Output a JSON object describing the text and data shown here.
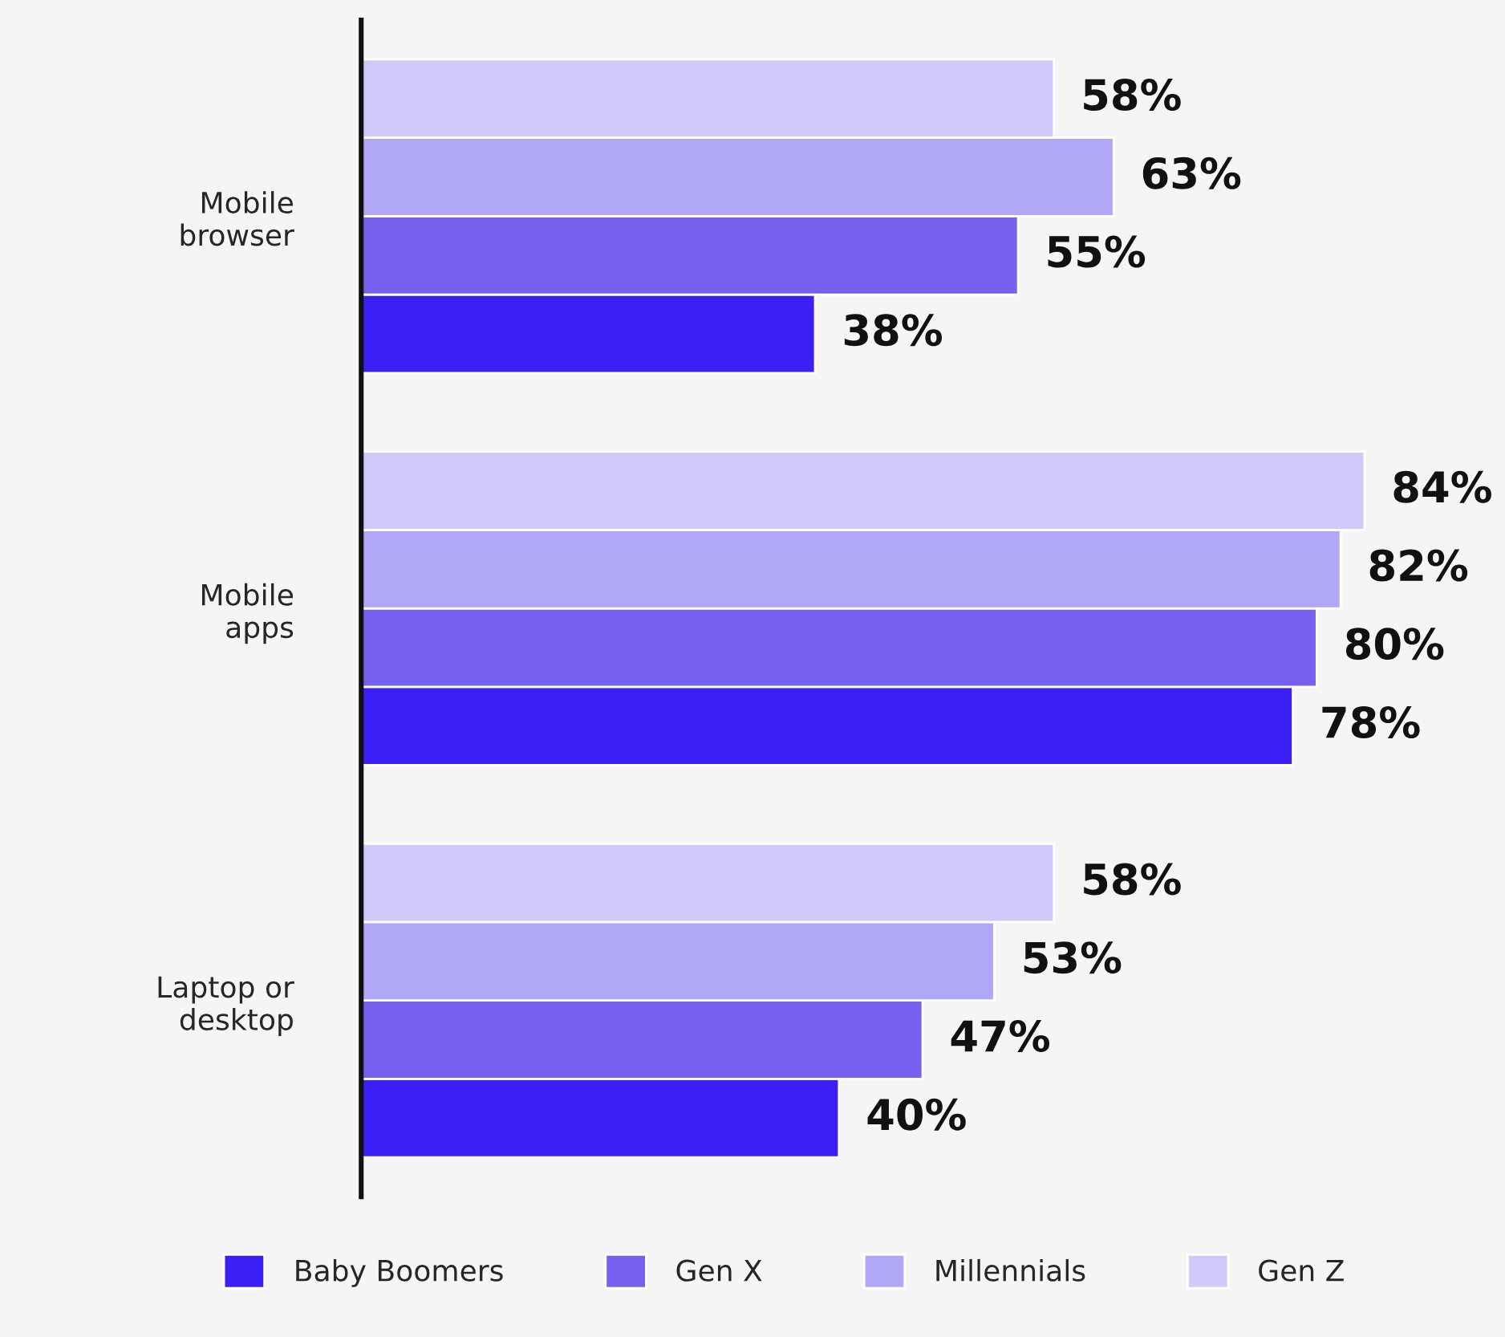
{
  "chart_data": {
    "type": "bar",
    "orientation": "horizontal",
    "categories": [
      "Mobile\nbrowser",
      "Mobile\napps",
      "Laptop or\ndesktop"
    ],
    "series": [
      {
        "name": "Baby Boomers",
        "color": "#3c1ff5",
        "values": [
          38,
          78,
          40
        ],
        "value_labels": [
          "38%",
          "78%",
          "40%"
        ]
      },
      {
        "name": "Gen X",
        "color": "#7661ef",
        "values": [
          55,
          80,
          47
        ],
        "value_labels": [
          "55%",
          "80%",
          "47%"
        ]
      },
      {
        "name": "Millennials",
        "color": "#b0a7f6",
        "values": [
          63,
          82,
          53
        ],
        "value_labels": [
          "63%",
          "82%",
          "53%"
        ]
      },
      {
        "name": "Gen Z",
        "color": "#cfcaf9",
        "values": [
          58,
          84,
          58
        ],
        "value_labels": [
          "58%",
          "84%",
          "58%"
        ]
      }
    ],
    "legend": "bottom",
    "grid": false
  }
}
